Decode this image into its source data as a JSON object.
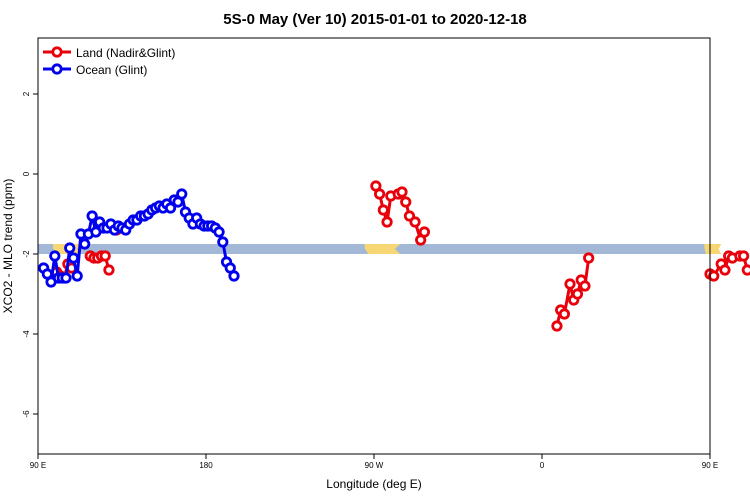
{
  "chart_data": {
    "type": "line",
    "title": "5S-0 May (Ver 10)   2015-01-01 to 2020-12-18",
    "xlabel": "Longitude (deg E)",
    "ylabel": "XCO2 - MLO trend (ppm)",
    "xlim": [
      90,
      450
    ],
    "ylim": [
      -7,
      3.4
    ],
    "x_ticks": [
      {
        "value": 90,
        "label": "90 E"
      },
      {
        "value": 180,
        "label": "180"
      },
      {
        "value": 270,
        "label": "90 W"
      },
      {
        "value": 360,
        "label": "0"
      },
      {
        "value": 450,
        "label": "90 E"
      },
      {
        "value": 540,
        "label": "180"
      }
    ],
    "y_ticks": [
      {
        "value": 2,
        "label": "2"
      },
      {
        "value": 0,
        "label": "0"
      },
      {
        "value": -2,
        "label": "-2"
      },
      {
        "value": -4,
        "label": "-4"
      },
      {
        "value": -6,
        "label": "-6"
      }
    ],
    "legend_position": "top-left",
    "band": {
      "y_range": [
        -1.75,
        -2.0
      ],
      "ocean_color": "#a3b8d7",
      "land_color": "#f7d774",
      "land_segments_x": [
        [
          98,
          113
        ],
        [
          265,
          284
        ],
        [
          447,
          456
        ],
        [
          484,
          493
        ],
        [
          497,
          500
        ],
        [
          505,
          515
        ],
        [
          537,
          542
        ]
      ]
    },
    "series": [
      {
        "name": "Land (Nadir&Glint)",
        "color": "#e8000b",
        "segments": [
          [
            [
              100,
              -2.45
            ],
            [
              102,
              -2.55
            ],
            [
              104,
              -2.6
            ],
            [
              106,
              -2.25
            ],
            [
              108,
              -2.35
            ]
          ],
          [
            [
              118,
              -2.05
            ],
            [
              120,
              -2.1
            ],
            [
              122,
              -2.1
            ],
            [
              124,
              -2.05
            ],
            [
              126,
              -2.05
            ],
            [
              128,
              -2.4
            ]
          ],
          [
            [
              132,
              -1.4
            ]
          ],
          [
            [
              271,
              -0.3
            ],
            [
              273,
              -0.5
            ],
            [
              275,
              -0.9
            ],
            [
              277,
              -1.2
            ],
            [
              279,
              -0.55
            ],
            [
              283,
              -0.5
            ],
            [
              285,
              -0.45
            ],
            [
              287,
              -0.7
            ],
            [
              289,
              -1.05
            ],
            [
              292,
              -1.2
            ],
            [
              295,
              -1.65
            ],
            [
              297,
              -1.45
            ]
          ],
          [
            [
              368,
              -3.8
            ],
            [
              370,
              -3.4
            ],
            [
              372,
              -3.5
            ],
            [
              375,
              -2.75
            ],
            [
              377,
              -3.15
            ],
            [
              379,
              -3.0
            ],
            [
              381,
              -2.65
            ],
            [
              383,
              -2.8
            ],
            [
              385,
              -2.1
            ]
          ],
          [
            [
              450,
              -2.5
            ],
            [
              452,
              -2.55
            ],
            [
              456,
              -2.25
            ],
            [
              458,
              -2.4
            ],
            [
              460,
              -2.05
            ],
            [
              462,
              -2.1
            ],
            [
              466,
              -2.05
            ],
            [
              468,
              -2.05
            ],
            [
              470,
              -2.4
            ]
          ],
          [
            [
              486,
              -1.4
            ]
          ]
        ]
      },
      {
        "name": "Ocean (Glint)",
        "color": "#0000ee",
        "segments": [
          [
            [
              93,
              -2.35
            ],
            [
              95,
              -2.5
            ],
            [
              97,
              -2.7
            ],
            [
              99,
              -2.05
            ],
            [
              101,
              -2.6
            ],
            [
              103,
              -2.6
            ],
            [
              105,
              -2.6
            ],
            [
              107,
              -1.85
            ],
            [
              109,
              -2.1
            ],
            [
              111,
              -2.55
            ],
            [
              113,
              -1.5
            ],
            [
              115,
              -1.75
            ],
            [
              117,
              -1.5
            ],
            [
              119,
              -1.05
            ],
            [
              121,
              -1.45
            ],
            [
              123,
              -1.2
            ],
            [
              125,
              -1.35
            ],
            [
              127,
              -1.35
            ],
            [
              129,
              -1.25
            ],
            [
              131,
              -1.4
            ],
            [
              133,
              -1.3
            ],
            [
              135,
              -1.35
            ],
            [
              137,
              -1.4
            ],
            [
              139,
              -1.25
            ],
            [
              141,
              -1.15
            ],
            [
              143,
              -1.15
            ],
            [
              145,
              -1.05
            ],
            [
              147,
              -1.05
            ],
            [
              149,
              -1.0
            ],
            [
              151,
              -0.9
            ],
            [
              153,
              -0.85
            ],
            [
              155,
              -0.8
            ],
            [
              157,
              -0.85
            ],
            [
              159,
              -0.75
            ],
            [
              161,
              -0.85
            ],
            [
              163,
              -0.65
            ],
            [
              165,
              -0.7
            ],
            [
              167,
              -0.5
            ],
            [
              169,
              -0.95
            ],
            [
              171,
              -1.1
            ],
            [
              173,
              -1.25
            ],
            [
              175,
              -1.1
            ],
            [
              177,
              -1.25
            ],
            [
              179,
              -1.3
            ],
            [
              181,
              -1.3
            ],
            [
              183,
              -1.3
            ],
            [
              185,
              -1.35
            ],
            [
              187,
              -1.45
            ],
            [
              189,
              -1.7
            ],
            [
              191,
              -2.2
            ],
            [
              193,
              -2.35
            ],
            [
              195,
              -2.55
            ]
          ]
        ]
      }
    ]
  }
}
